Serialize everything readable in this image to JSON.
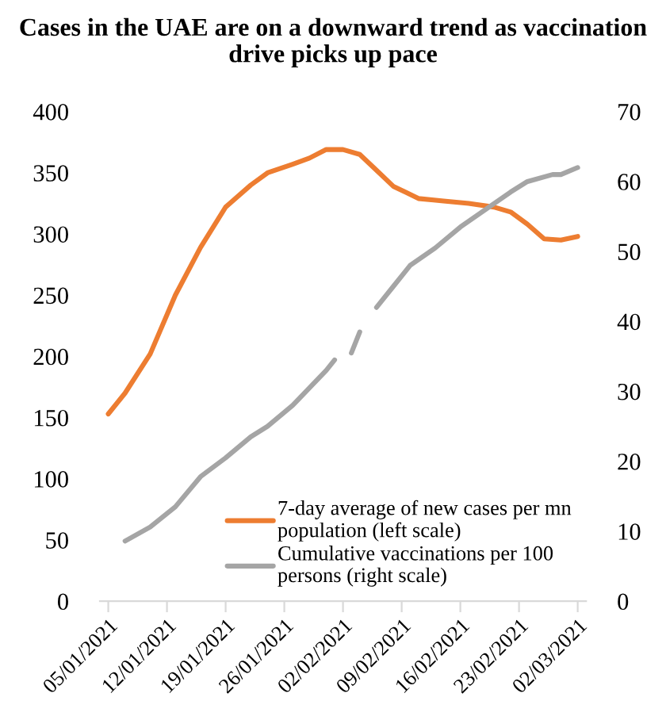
{
  "chart_data": {
    "type": "line",
    "title": "Cases in the UAE are on a downward trend as vaccination drive picks up pace",
    "series": [
      {
        "name": "7-day average of new cases per mn population (left scale)",
        "color": "#ed7d31",
        "x": [
          "2021-01-05",
          "2021-01-07",
          "2021-01-10",
          "2021-01-13",
          "2021-01-16",
          "2021-01-19",
          "2021-01-22",
          "2021-01-24",
          "2021-01-27",
          "2021-01-29",
          "2021-01-31",
          "2021-02-02",
          "2021-02-04",
          "2021-02-06",
          "2021-02-08",
          "2021-02-11",
          "2021-02-14",
          "2021-02-17",
          "2021-02-20",
          "2021-02-22",
          "2021-02-24",
          "2021-02-26",
          "2021-02-28",
          "2021-03-02"
        ],
        "values": [
          153,
          170,
          202,
          250,
          289,
          322,
          340,
          350,
          357,
          362,
          369,
          369,
          365,
          352,
          339,
          329,
          327,
          325,
          322,
          318,
          308,
          296,
          295,
          298
        ]
      },
      {
        "name": "Cumulative vaccinations per 100 persons (right scale)",
        "color": "#a5a5a5",
        "axis": "y2",
        "x": [
          "2021-01-07",
          "2021-01-10",
          "2021-01-13",
          "2021-01-16",
          "2021-01-19",
          "2021-01-22",
          "2021-01-24",
          "2021-01-27",
          "2021-01-29",
          "2021-01-31",
          "2021-02-01",
          "2021-02-02",
          "2021-02-03",
          "2021-02-04",
          "2021-02-05",
          "2021-02-06",
          "2021-02-08",
          "2021-02-10",
          "2021-02-13",
          "2021-02-16",
          "2021-02-19",
          "2021-02-22",
          "2021-02-24",
          "2021-02-27",
          "2021-02-28",
          "2021-03-02"
        ],
        "values": [
          8.6,
          10.6,
          13.5,
          17.8,
          20.5,
          23.5,
          25,
          28,
          30.5,
          33,
          34.5,
          null,
          35.5,
          38.5,
          null,
          42,
          45,
          48,
          50.5,
          53.5,
          56,
          58.5,
          60,
          61,
          61,
          62
        ]
      }
    ],
    "xlim": [
      "2021-01-04",
      "2021-03-03"
    ],
    "xticks": [
      {
        "value": "2021-01-05",
        "label": "05/01/2021"
      },
      {
        "value": "2021-01-12",
        "label": "12/01/2021"
      },
      {
        "value": "2021-01-19",
        "label": "19/01/2021"
      },
      {
        "value": "2021-01-26",
        "label": "26/01/2021"
      },
      {
        "value": "2021-02-02",
        "label": "02/02/2021"
      },
      {
        "value": "2021-02-09",
        "label": "09/02/2021"
      },
      {
        "value": "2021-02-16",
        "label": "16/02/2021"
      },
      {
        "value": "2021-02-23",
        "label": "23/02/2021"
      },
      {
        "value": "2021-03-02",
        "label": "02/03/2021"
      }
    ],
    "ylim": [
      0,
      400
    ],
    "yticks": [
      0,
      50,
      100,
      150,
      200,
      250,
      300,
      350,
      400
    ],
    "y2lim": [
      0,
      70
    ],
    "y2ticks": [
      0,
      10,
      20,
      30,
      40,
      50,
      60,
      70
    ],
    "grid": false,
    "legend": "bottom right",
    "marker": "none",
    "line_style": "solid"
  }
}
